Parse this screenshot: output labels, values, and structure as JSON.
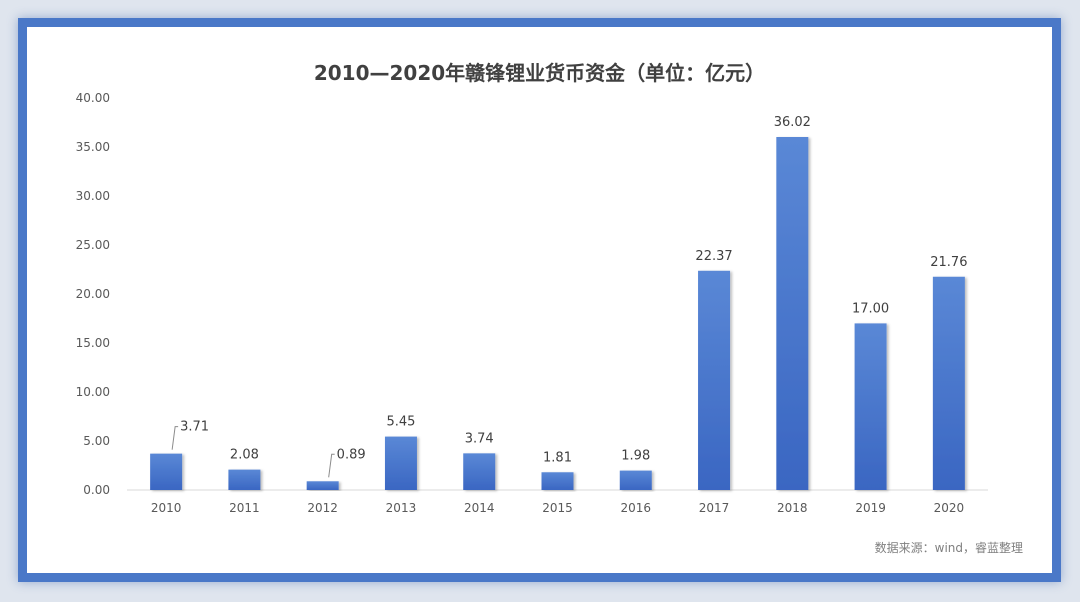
{
  "chart_data": {
    "type": "bar",
    "title": "2010—2020年赣锋锂业货币资金（单位：亿元）",
    "source": "数据来源：wind，睿蓝整理",
    "categories": [
      "2010",
      "2011",
      "2012",
      "2013",
      "2014",
      "2015",
      "2016",
      "2017",
      "2018",
      "2019",
      "2020"
    ],
    "values": [
      3.71,
      2.08,
      0.89,
      5.45,
      3.74,
      1.81,
      1.98,
      22.37,
      36.02,
      17.0,
      21.76
    ],
    "value_labels": [
      "3.71",
      "2.08",
      "0.89",
      "5.45",
      "3.74",
      "1.81",
      "1.98",
      "22.37",
      "36.02",
      "17.00",
      "21.76"
    ],
    "yticks": [
      "0.00",
      "5.00",
      "10.00",
      "15.00",
      "20.00",
      "25.00",
      "30.00",
      "35.00",
      "40.00"
    ],
    "ylim": [
      0,
      40
    ],
    "grid": false,
    "legend": "none",
    "colors": {
      "bar_top": "#5a88d6",
      "bar_bottom": "#3a66c2",
      "frame": "#4a78c8"
    }
  }
}
